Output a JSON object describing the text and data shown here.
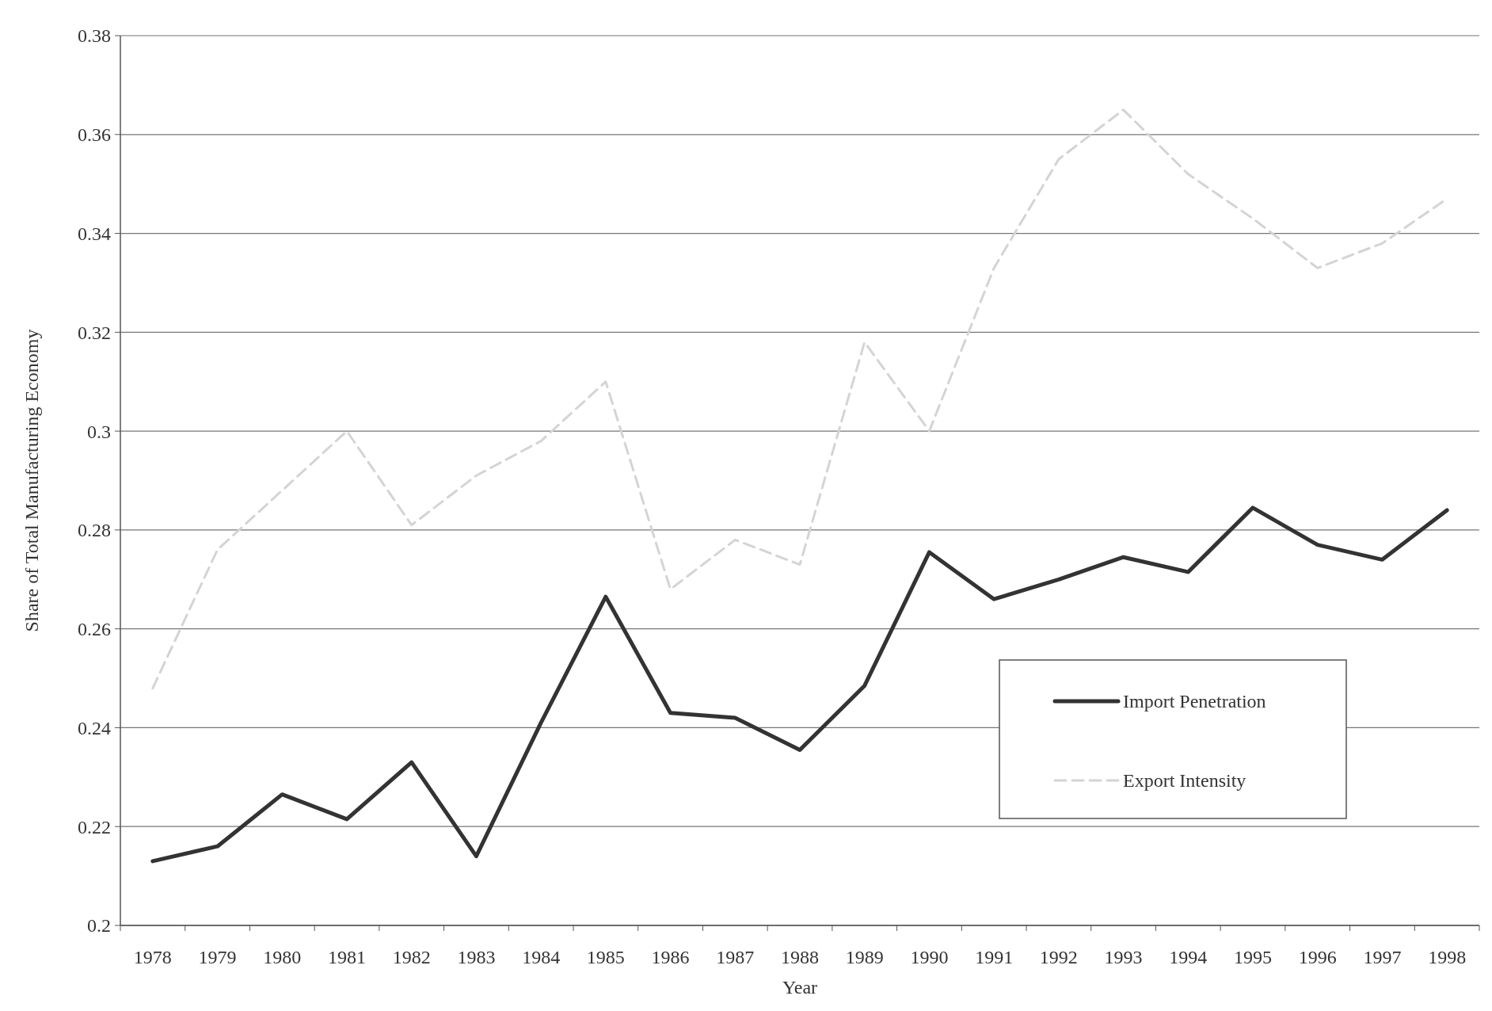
{
  "chart_data": {
    "type": "line",
    "xlabel": "Year",
    "ylabel": "Share of Total Manufacturing Economy",
    "categories": [
      "1978",
      "1979",
      "1980",
      "1981",
      "1982",
      "1983",
      "1984",
      "1985",
      "1986",
      "1987",
      "1988",
      "1989",
      "1990",
      "1991",
      "1992",
      "1993",
      "1994",
      "1995",
      "1996",
      "1997",
      "1998"
    ],
    "series": [
      {
        "name": "Import Penetration",
        "color": "#333333",
        "line_style": "solid",
        "values": [
          0.213,
          0.216,
          0.2265,
          0.2215,
          0.233,
          0.214,
          0.241,
          0.2665,
          0.243,
          0.242,
          0.2355,
          0.2485,
          0.2755,
          0.266,
          0.27,
          0.2745,
          0.2715,
          0.2845,
          0.277,
          0.274,
          0.284
        ]
      },
      {
        "name": "Export Intensity",
        "color": "#d4d4d4",
        "line_style": "dashed",
        "values": [
          0.248,
          0.276,
          0.288,
          0.3,
          0.281,
          0.291,
          0.298,
          0.31,
          0.268,
          0.278,
          0.273,
          0.318,
          0.3,
          0.333,
          0.355,
          0.365,
          0.352,
          0.343,
          0.333,
          0.338,
          0.347
        ]
      }
    ],
    "ylim": [
      0.2,
      0.38
    ],
    "yticks": [
      {
        "value": 0.2,
        "label": "0.2"
      },
      {
        "value": 0.22,
        "label": "0.22"
      },
      {
        "value": 0.24,
        "label": "0.24"
      },
      {
        "value": 0.26,
        "label": "0.26"
      },
      {
        "value": 0.28,
        "label": "0.28"
      },
      {
        "value": 0.3,
        "label": "0.3"
      },
      {
        "value": 0.32,
        "label": "0.32"
      },
      {
        "value": 0.34,
        "label": "0.34"
      },
      {
        "value": 0.36,
        "label": "0.36"
      },
      {
        "value": 0.38,
        "label": "0.38"
      }
    ],
    "grid": "y",
    "legend": "right",
    "marker": "none"
  }
}
